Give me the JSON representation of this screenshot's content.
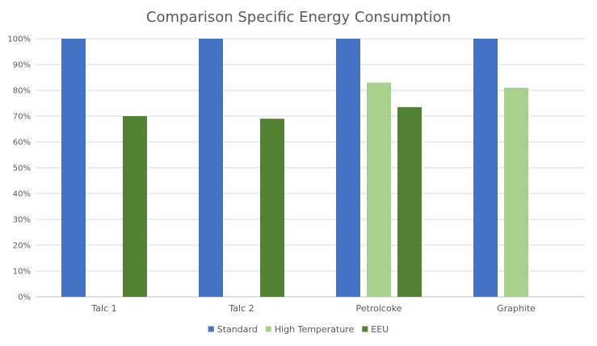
{
  "chart_data": {
    "type": "bar",
    "title": "Comparison Specific Energy Consumption",
    "xlabel": "",
    "ylabel": "",
    "categories": [
      "Talc 1",
      "Talc 2",
      "Petrolcoke",
      "Graphite"
    ],
    "y_ticks": [
      "0%",
      "10%",
      "20%",
      "30%",
      "40%",
      "50%",
      "60%",
      "70%",
      "80%",
      "90%",
      "100%"
    ],
    "ylim": [
      0,
      100
    ],
    "grid": true,
    "legend_position": "bottom",
    "series": [
      {
        "name": "Standard",
        "color": "#4472C4",
        "values": [
          100,
          100,
          100,
          100
        ]
      },
      {
        "name": "High Temperature",
        "color": "#A9D18E",
        "values": [
          null,
          null,
          83,
          81
        ]
      },
      {
        "name": "EEU",
        "color": "#548235",
        "values": [
          70,
          69,
          73.5,
          null
        ]
      }
    ]
  }
}
